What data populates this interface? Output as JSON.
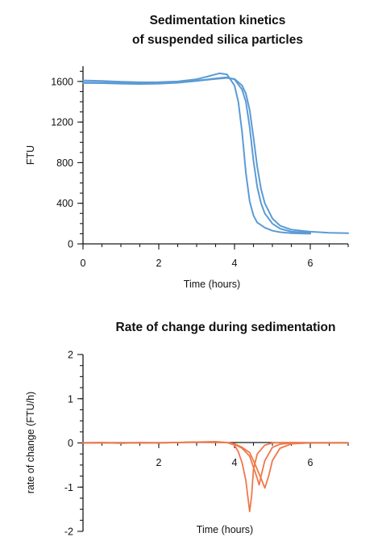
{
  "chart_data": [
    {
      "type": "line",
      "title": [
        "Sedimentation kinetics",
        "of suspended silica particles"
      ],
      "xlabel": "Time (hours)",
      "ylabel": "FTU",
      "xlim": [
        0,
        7
      ],
      "ylim": [
        0,
        1750
      ],
      "x_ticks": [
        0,
        2,
        4,
        6
      ],
      "x_tick_labels": [
        "0",
        "2",
        "4",
        "6"
      ],
      "y_ticks": [
        0,
        400,
        800,
        1200,
        1600
      ],
      "y_tick_labels": [
        "0",
        "400",
        "800",
        "1200",
        "1600"
      ],
      "color": "#5b9bd5",
      "grid": false,
      "series": [
        {
          "x": [
            0,
            0.5,
            1,
            1.5,
            2,
            2.5,
            3,
            3.3,
            3.6,
            3.8,
            4.0,
            4.1,
            4.2,
            4.3,
            4.4,
            4.5,
            4.6,
            4.8,
            5.0,
            5.2,
            5.5,
            6.0
          ],
          "y": [
            1610,
            1605,
            1597,
            1592,
            1593,
            1600,
            1622,
            1650,
            1680,
            1670,
            1560,
            1400,
            1100,
            700,
            420,
            280,
            210,
            160,
            130,
            115,
            105,
            100
          ]
        },
        {
          "x": [
            0,
            0.5,
            1,
            1.5,
            2,
            2.5,
            3,
            3.5,
            3.8,
            4.0,
            4.2,
            4.3,
            4.4,
            4.5,
            4.6,
            4.7,
            4.8,
            5.0,
            5.2,
            5.5,
            6.0
          ],
          "y": [
            1590,
            1588,
            1583,
            1580,
            1583,
            1592,
            1608,
            1630,
            1640,
            1620,
            1520,
            1400,
            1150,
            820,
            560,
            400,
            300,
            200,
            150,
            120,
            110
          ]
        },
        {
          "x": [
            0,
            0.5,
            1,
            1.5,
            2,
            2.5,
            3,
            3.5,
            3.8,
            4.0,
            4.2,
            4.3,
            4.4,
            4.5,
            4.6,
            4.7,
            4.8,
            5.0,
            5.2,
            5.5,
            6.0,
            6.5,
            7.0
          ],
          "y": [
            1585,
            1583,
            1578,
            1575,
            1578,
            1587,
            1605,
            1625,
            1635,
            1625,
            1560,
            1480,
            1320,
            1050,
            760,
            540,
            400,
            250,
            180,
            140,
            120,
            110,
            105
          ]
        }
      ]
    },
    {
      "type": "line",
      "title": "Rate of change during sedimentation",
      "xlabel": "Time (hours)",
      "ylabel": "rate of change (FTU/h)",
      "xlim": [
        0,
        7
      ],
      "ylim": [
        -2,
        2
      ],
      "x_ticks": [
        2,
        4,
        6
      ],
      "x_tick_labels": [
        "2",
        "4",
        "6"
      ],
      "y_ticks": [
        -2,
        -1,
        0,
        1,
        2
      ],
      "y_tick_labels": [
        "-2",
        "-1",
        "0",
        "1",
        "2"
      ],
      "color": "#f0784a",
      "grid": false,
      "series": [
        {
          "x": [
            0,
            0.5,
            1,
            1.5,
            2,
            2.5,
            3,
            3.5,
            3.8,
            4.0,
            4.1,
            4.2,
            4.3,
            4.35,
            4.4,
            4.45,
            4.5,
            4.6,
            4.8,
            5.0,
            5.5,
            6.0,
            7.0
          ],
          "y": [
            0,
            0.01,
            -0.01,
            0.01,
            0,
            0.01,
            0.02,
            0.03,
            0.01,
            -0.05,
            -0.2,
            -0.45,
            -0.85,
            -1.2,
            -1.55,
            -1.2,
            -0.6,
            -0.25,
            -0.05,
            0,
            0.01,
            0,
            0
          ]
        },
        {
          "x": [
            0,
            1,
            2,
            3,
            3.8,
            4.0,
            4.2,
            4.4,
            4.5,
            4.6,
            4.65,
            4.7,
            4.8,
            5.0,
            5.2,
            5.5,
            6.0,
            7.0
          ],
          "y": [
            0,
            0,
            0,
            0.02,
            0.01,
            -0.03,
            -0.12,
            -0.3,
            -0.55,
            -0.8,
            -0.95,
            -0.75,
            -0.4,
            -0.1,
            -0.03,
            0,
            0,
            0
          ]
        },
        {
          "x": [
            0,
            1,
            2,
            3,
            3.8,
            4.0,
            4.2,
            4.4,
            4.5,
            4.6,
            4.7,
            4.8,
            4.9,
            5.0,
            5.2,
            5.5,
            6.0,
            7.0
          ],
          "y": [
            0,
            0,
            0,
            0.02,
            0.01,
            -0.02,
            -0.1,
            -0.22,
            -0.4,
            -0.6,
            -0.8,
            -1.02,
            -0.75,
            -0.4,
            -0.12,
            -0.02,
            0,
            0
          ]
        }
      ]
    }
  ]
}
